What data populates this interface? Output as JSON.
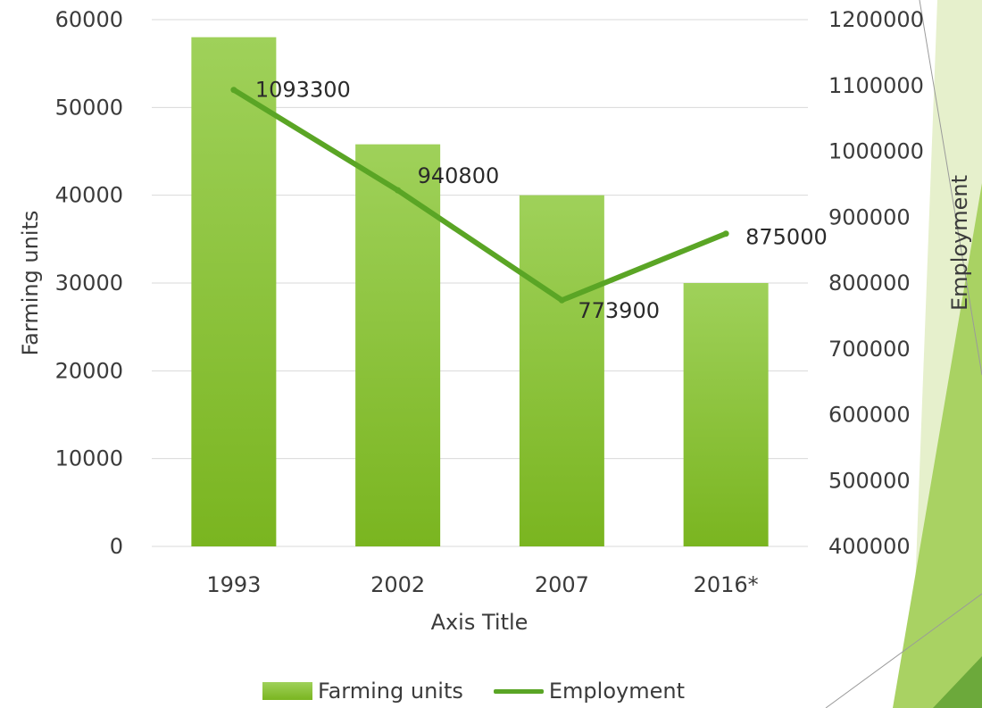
{
  "colors": {
    "bar_top": "#9fd15a",
    "bar_bottom": "#7ab520",
    "line": "#5aa525",
    "gridline": "#d9d9d9",
    "decoration_light": "#e3efc8",
    "decoration_mid": "#a8d162",
    "decoration_dark": "#6aa83a"
  },
  "legend": {
    "bar_label": "Farming units",
    "line_label": "Employment"
  },
  "chart_data": {
    "type": "bar",
    "categories": [
      "1993",
      "2002",
      "2007",
      "2016*"
    ],
    "series": [
      {
        "name": "Farming units",
        "type": "bar",
        "axis": "left",
        "values": [
          58000,
          45800,
          40000,
          30000
        ]
      },
      {
        "name": "Employment",
        "type": "line",
        "axis": "right",
        "values": [
          1093300,
          940800,
          773900,
          875000
        ],
        "data_labels": [
          "1093300",
          "940800",
          "773900",
          "875000"
        ]
      }
    ],
    "xlabel": "Axis Title",
    "ylabel": "Farming units",
    "y2label": "Employment",
    "ylim": [
      0,
      60000
    ],
    "yticks": [
      "0",
      "10000",
      "20000",
      "30000",
      "40000",
      "50000",
      "60000"
    ],
    "y2lim": [
      400000,
      1200000
    ],
    "y2ticks": [
      "400000",
      "500000",
      "600000",
      "700000",
      "800000",
      "900000",
      "1000000",
      "1100000",
      "1200000"
    ],
    "grid": true,
    "legend_position": "bottom"
  }
}
